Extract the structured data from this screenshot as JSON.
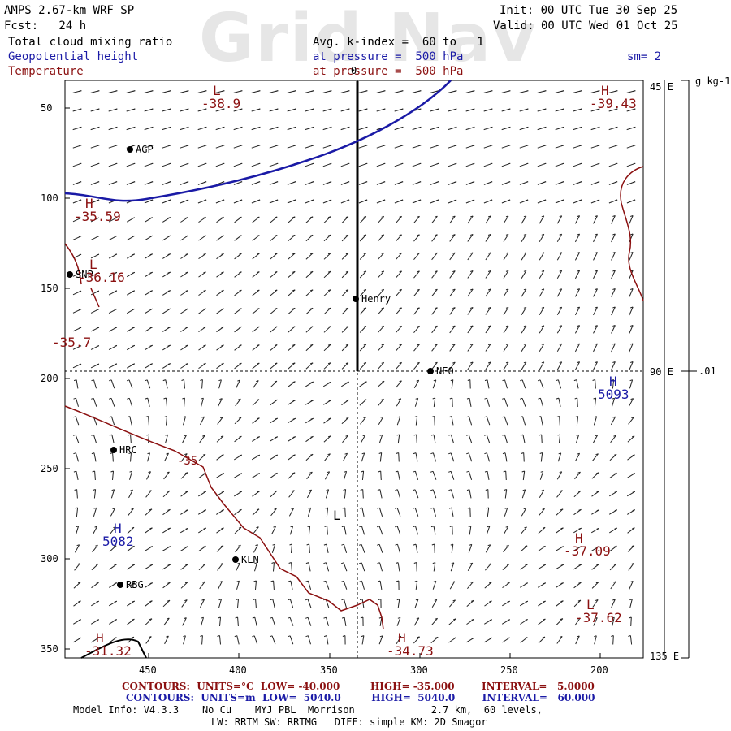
{
  "watermark": "Grid Nav",
  "header": {
    "title": "AMPS 2.67-km WRF SP",
    "fcst": "Fcst:   24 h",
    "init": "Init: 00 UTC Tue 30 Sep 25",
    "valid": "Valid: 00 UTC Wed 01 Oct 25",
    "field1_name": "Total cloud mixing ratio",
    "field1_desc": "Avg. k-index =  60 to   1",
    "field2_name": "Geopotential height",
    "field2_desc": "at pressure =  500 hPa",
    "smoothing": "sm= 2",
    "field3_name": "Temperature",
    "field3_desc": "at pressure =  500 hPa"
  },
  "axes": {
    "y_ticks": [
      "50",
      "100",
      "150",
      "200",
      "250",
      "300",
      "350"
    ],
    "x_ticks": [
      "450",
      "400",
      "350",
      "300",
      "250",
      "200"
    ],
    "right_lon_labels": [
      "45 E",
      "90 E",
      "135 E"
    ],
    "colorbar_unit": "g kg-1",
    "colorbar_value": ".01"
  },
  "map": {
    "stations": [
      "AGP",
      "SNP",
      "Henry",
      "NEO",
      "HRC",
      "KLN",
      "RBG"
    ],
    "extrema": [
      {
        "type": "L",
        "value": "-38.9",
        "color": "#8b1010"
      },
      {
        "type": "H",
        "value": "-39.43",
        "color": "#8b1010"
      },
      {
        "type": "H",
        "value": "-35.59",
        "color": "#8b1010"
      },
      {
        "type": "L",
        "value": "-36.16",
        "color": "#8b1010"
      },
      {
        "type": "",
        "value": "-35.7",
        "color": "#8b1010"
      },
      {
        "type": "H",
        "value": "5093",
        "color": "#1a1aa6"
      },
      {
        "type": "H",
        "value": "5082",
        "color": "#1a1aa6"
      },
      {
        "type": "H",
        "value": "-37.09",
        "color": "#8b1010"
      },
      {
        "type": "L",
        "value": "-37.62",
        "color": "#8b1010"
      },
      {
        "type": "H",
        "value": "-31.32",
        "color": "#8b1010"
      },
      {
        "type": "H",
        "value": "-34.73",
        "color": "#8b1010"
      },
      {
        "type": "L",
        "value": "",
        "color": "#000000"
      }
    ],
    "contour_labels": [
      "-35",
      "0"
    ]
  },
  "footer": {
    "temp_line": "CONTOURS:  UNITS=°C  LOW= -40.000         HIGH= -35.000        INTERVAL=   5.0000",
    "height_line": "CONTOURS:  UNITS=m  LOW=  5040.0         HIGH=  5040.0        INTERVAL=   60.000",
    "model_info": "Model Info: V4.3.3    No Cu    MYJ PBL  Morrison             2.7 km,  60 levels,",
    "physics": "LW: RRTM SW: RRTMG   DIFF: simple KM: 2D Smagor"
  },
  "colors": {
    "temperature": "#8b1010",
    "height": "#1a1aa6",
    "cloud": "#000000"
  }
}
